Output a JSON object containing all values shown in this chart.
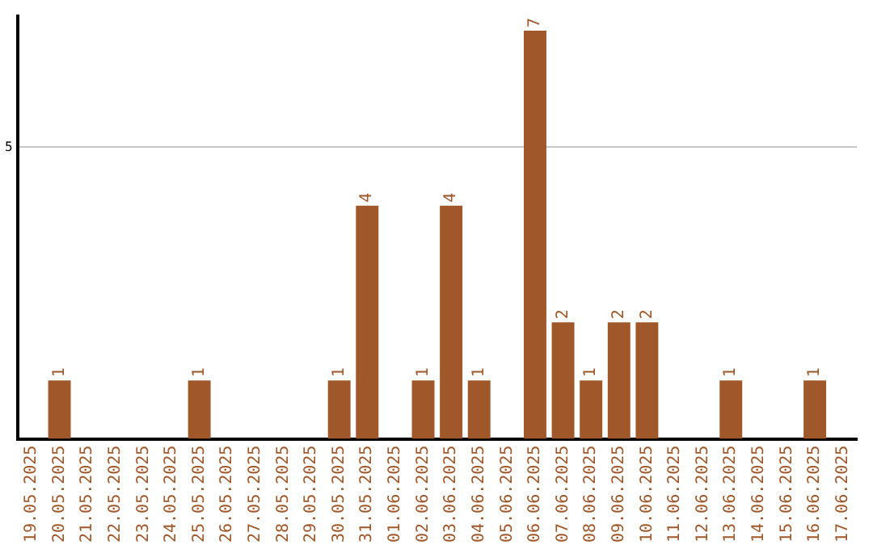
{
  "chart_data": {
    "type": "bar",
    "categories": [
      "19.05.2025",
      "20.05.2025",
      "21.05.2025",
      "22.05.2025",
      "23.05.2025",
      "24.05.2025",
      "25.05.2025",
      "26.05.2025",
      "27.05.2025",
      "28.05.2025",
      "29.05.2025",
      "30.05.2025",
      "31.05.2025",
      "01.06.2025",
      "02.06.2025",
      "03.06.2025",
      "04.06.2025",
      "05.06.2025",
      "06.06.2025",
      "07.06.2025",
      "08.06.2025",
      "09.06.2025",
      "10.06.2025",
      "11.06.2025",
      "12.06.2025",
      "13.06.2025",
      "14.06.2025",
      "15.06.2025",
      "16.06.2025",
      "17.06.2025"
    ],
    "values": [
      null,
      1,
      null,
      null,
      null,
      null,
      1,
      null,
      null,
      null,
      null,
      1,
      4,
      null,
      1,
      4,
      1,
      null,
      7,
      2,
      1,
      2,
      2,
      null,
      null,
      1,
      null,
      null,
      1,
      null
    ],
    "color": "#a0582a",
    "ylim": [
      0,
      7.25
    ],
    "yticks": [
      5
    ],
    "grid": "y",
    "legend": false,
    "data_labels": true
  }
}
